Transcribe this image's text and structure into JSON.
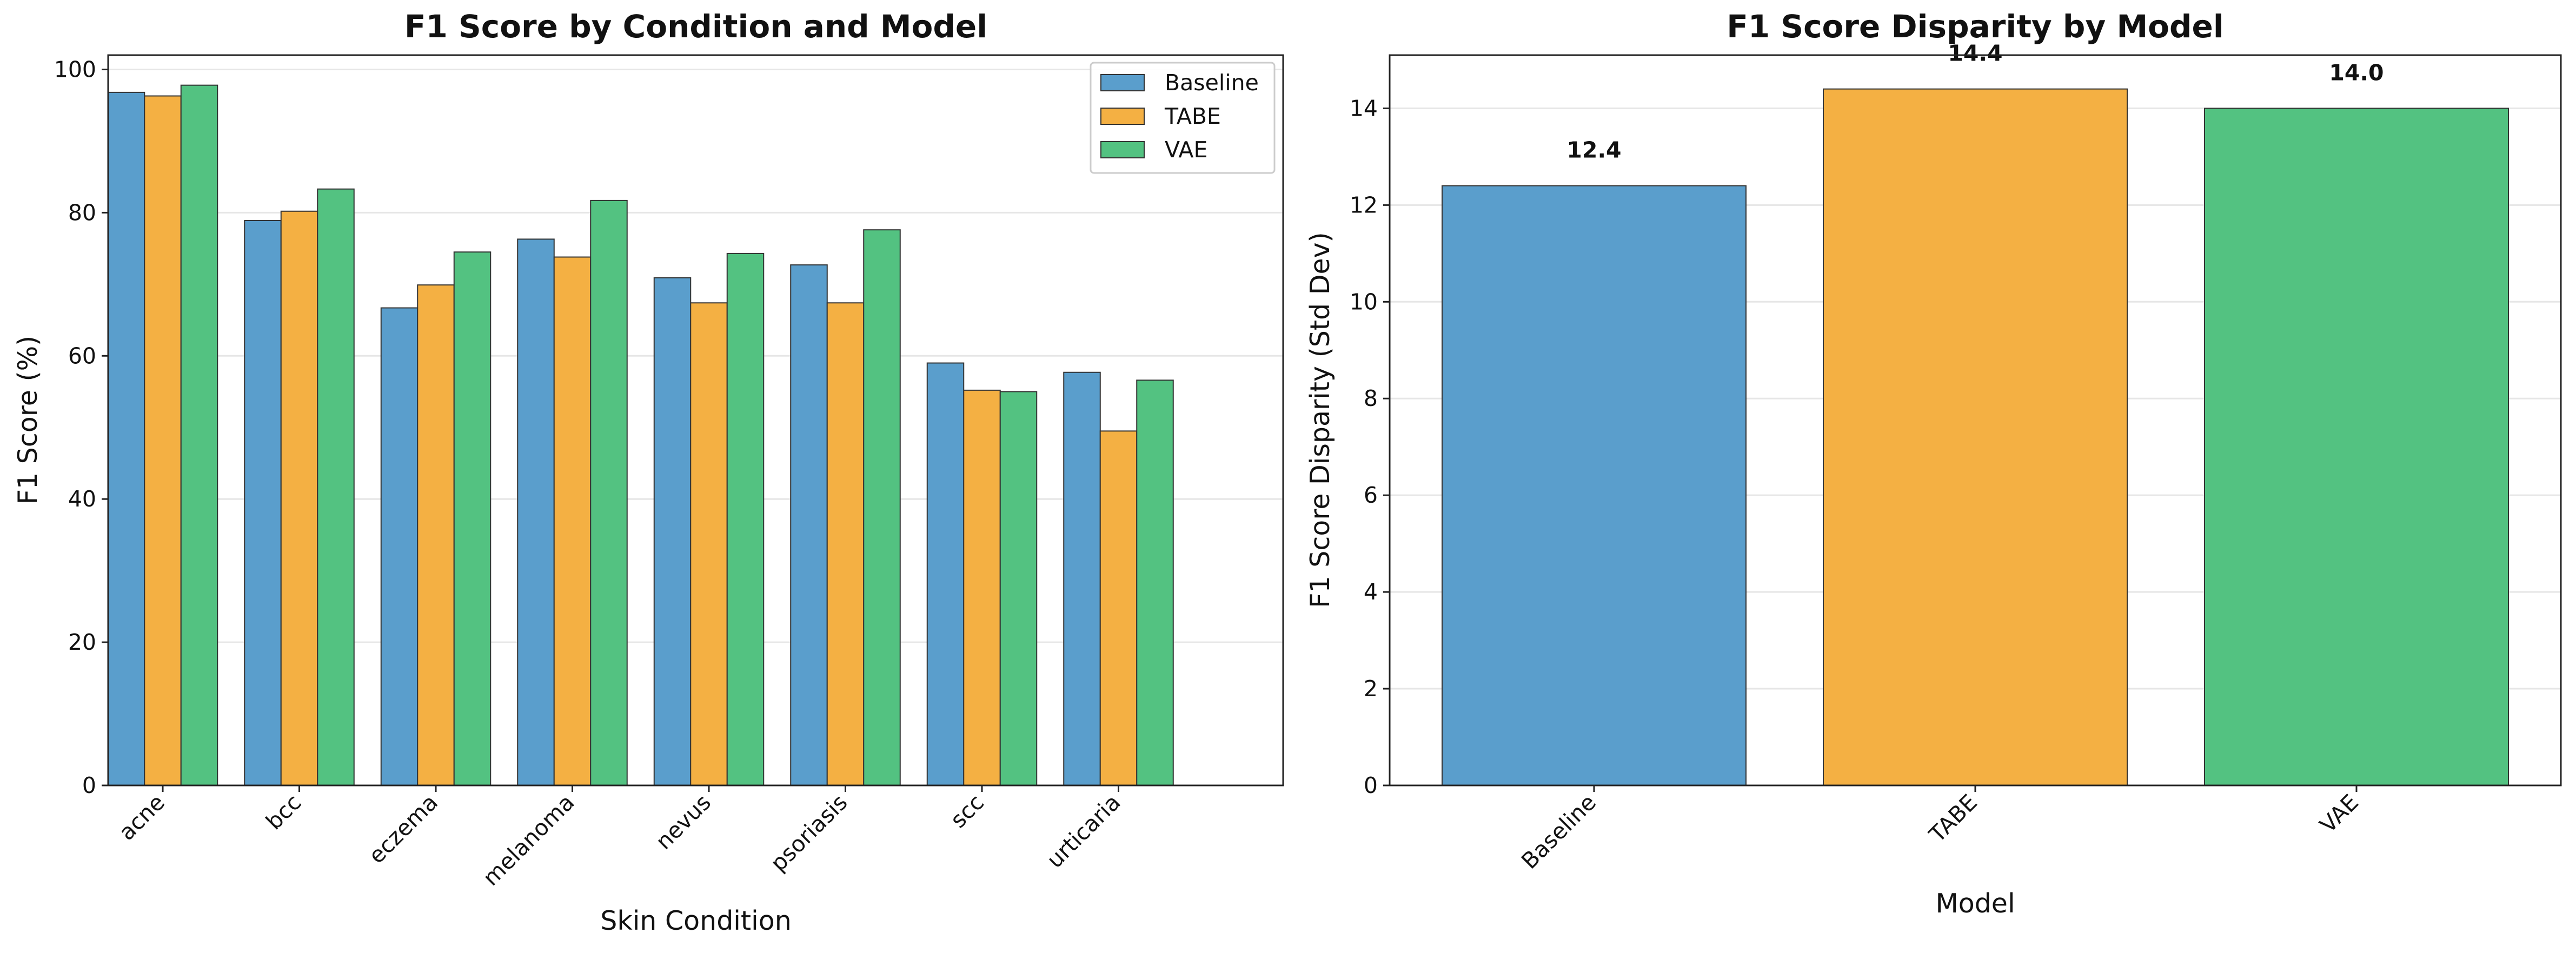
{
  "chart_data": [
    {
      "type": "bar",
      "title": "F1 Score by Condition and Model",
      "xlabel": "Skin Condition",
      "ylabel": "F1 Score (%)",
      "ylim": [
        0,
        102
      ],
      "yticks": [
        0,
        20,
        40,
        60,
        80,
        100
      ],
      "grid": "y",
      "legend": "top-right",
      "categories": [
        "acne",
        "bcc",
        "eczema",
        "melanoma",
        "nevus",
        "psoriasis",
        "scc",
        "urticaria"
      ],
      "series": [
        {
          "name": "Baseline",
          "color": "#5a9ecc",
          "values": [
            96.8,
            78.9,
            66.7,
            76.3,
            70.9,
            72.7,
            59.0,
            57.7
          ]
        },
        {
          "name": "TABE",
          "color": "#f4b043",
          "values": [
            96.3,
            80.2,
            69.9,
            73.8,
            67.4,
            67.4,
            55.2,
            49.5
          ]
        },
        {
          "name": "VAE",
          "color": "#53c281",
          "values": [
            97.8,
            83.3,
            74.5,
            81.7,
            74.3,
            77.6,
            55.0,
            56.6
          ]
        }
      ]
    },
    {
      "type": "bar",
      "title": "F1 Score Disparity by Model",
      "xlabel": "Model",
      "ylabel": "F1 Score Disparity (Std Dev)",
      "ylim": [
        0,
        15.1
      ],
      "yticks": [
        0,
        2,
        4,
        6,
        8,
        10,
        12,
        14
      ],
      "grid": "y",
      "categories": [
        "Baseline",
        "TABE",
        "VAE"
      ],
      "values": [
        12.4,
        14.4,
        14.0
      ],
      "value_labels": [
        "12.4",
        "14.4",
        "14.0"
      ],
      "colors": [
        "#5a9ecc",
        "#f4b043",
        "#53c281"
      ]
    }
  ]
}
